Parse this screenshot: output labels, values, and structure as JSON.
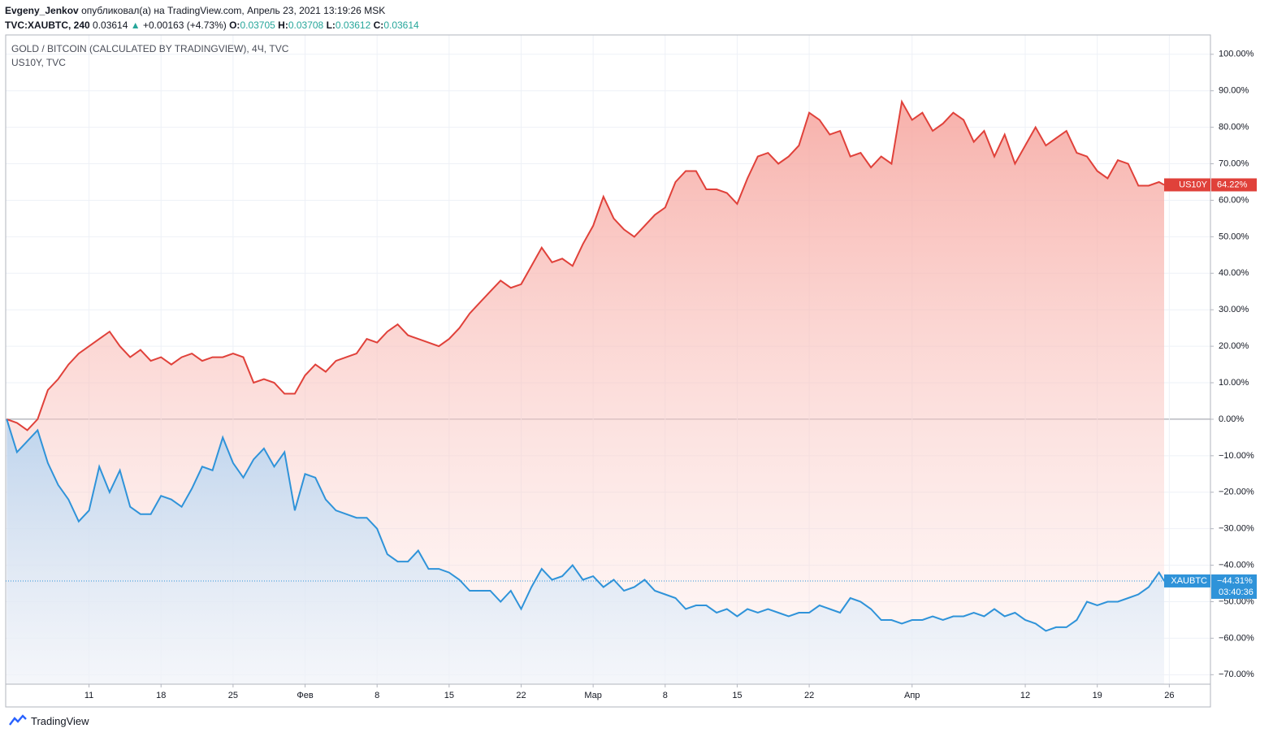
{
  "header": {
    "author": "Evgeny_Jenkov",
    "published": "опубликовал(а) на TradingView.com, Апрель 23, 2021 13:19:26 MSK",
    "symbol": "TVC:XAUBTC, 240",
    "last": "0.03614",
    "arrow": "▲",
    "change": "+0.00163 (+4.73%)",
    "o_label": "O:",
    "o": "0.03705",
    "h_label": "H:",
    "h": "0.03708",
    "l_label": "L:",
    "l": "0.03612",
    "c_label": "C:",
    "c": "0.03614"
  },
  "footer": {
    "brand": "TradingView"
  },
  "chart_data": {
    "type": "line",
    "legend_main": "GOLD / BITCOIN (CALCULATED BY TRADINGVIEW), 4Ч, TVC",
    "legend_compare": "US10Y, TVC",
    "x": [
      3,
      4,
      5,
      6,
      7,
      8,
      9,
      10,
      11,
      12,
      13,
      14,
      15,
      16,
      17,
      18,
      19,
      20,
      21,
      22,
      23,
      24,
      25,
      26,
      27,
      28,
      29,
      30,
      31,
      32,
      33,
      34,
      35,
      36,
      37,
      38,
      39,
      40,
      41,
      42,
      43,
      44,
      45,
      46,
      47,
      48,
      49,
      50,
      51,
      52,
      53,
      54,
      55,
      56,
      57,
      58,
      59,
      60,
      61,
      62,
      63,
      64,
      65,
      66,
      67,
      68,
      69,
      70,
      71,
      72,
      73,
      74,
      75,
      76,
      77,
      78,
      79,
      80,
      81,
      82,
      83,
      84,
      85,
      86,
      87,
      88,
      89,
      90,
      91,
      92,
      93,
      94,
      95,
      96,
      97,
      98,
      99,
      100,
      101,
      102,
      103,
      104,
      105,
      106,
      107,
      108,
      109,
      110,
      111,
      112,
      113,
      114,
      115,
      115.5
    ],
    "series": [
      {
        "name": "US10Y",
        "color": "#e0413a",
        "last_label": "64.22%",
        "values": [
          0,
          -1,
          -3,
          0,
          8,
          11,
          15,
          18,
          20,
          22,
          24,
          20,
          17,
          19,
          16,
          17,
          15,
          17,
          18,
          16,
          17,
          17,
          18,
          17,
          10,
          11,
          10,
          7,
          7,
          12,
          15,
          13,
          16,
          17,
          18,
          22,
          21,
          24,
          26,
          23,
          22,
          21,
          20,
          22,
          25,
          29,
          32,
          35,
          38,
          36,
          37,
          42,
          47,
          43,
          44,
          42,
          48,
          53,
          61,
          55,
          52,
          50,
          53,
          56,
          58,
          65,
          68,
          68,
          63,
          63,
          62,
          59,
          66,
          72,
          73,
          70,
          72,
          75,
          84,
          82,
          78,
          79,
          72,
          73,
          69,
          72,
          70,
          87,
          82,
          84,
          79,
          81,
          84,
          82,
          76,
          79,
          72,
          78,
          70,
          75,
          80,
          75,
          77,
          79,
          73,
          72,
          68,
          66,
          71,
          70,
          64,
          64,
          65,
          64.22
        ]
      },
      {
        "name": "XAUBTC",
        "color": "#2f93d9",
        "last_label": "−44.31%",
        "countdown": "03:40:36",
        "values": [
          0,
          -9,
          -6,
          -3,
          -12,
          -18,
          -22,
          -28,
          -25,
          -13,
          -20,
          -14,
          -24,
          -26,
          -26,
          -21,
          -22,
          -24,
          -19,
          -13,
          -14,
          -5,
          -12,
          -16,
          -11,
          -8,
          -13,
          -9,
          -25,
          -15,
          -16,
          -22,
          -25,
          -26,
          -27,
          -27,
          -30,
          -37,
          -39,
          -39,
          -36,
          -41,
          -41,
          -42,
          -44,
          -47,
          -47,
          -47,
          -50,
          -47,
          -52,
          -46,
          -41,
          -44,
          -43,
          -40,
          -44,
          -43,
          -46,
          -44,
          -47,
          -46,
          -44,
          -47,
          -48,
          -49,
          -52,
          -51,
          -51,
          -53,
          -52,
          -54,
          -52,
          -53,
          -52,
          -53,
          -54,
          -53,
          -53,
          -51,
          -52,
          -53,
          -49,
          -50,
          -52,
          -55,
          -55,
          -56,
          -55,
          -55,
          -54,
          -55,
          -54,
          -54,
          -53,
          -54,
          -52,
          -54,
          -53,
          -55,
          -56,
          -58,
          -57,
          -57,
          -55,
          -50,
          -51,
          -50,
          -50,
          -49,
          -48,
          -46,
          -42,
          -44.31
        ]
      }
    ],
    "xlim": [
      2.9,
      120
    ],
    "xticks": [
      {
        "value": 11,
        "label": "11"
      },
      {
        "value": 18,
        "label": "18"
      },
      {
        "value": 25,
        "label": "25"
      },
      {
        "value": 32,
        "label": "Фев"
      },
      {
        "value": 39,
        "label": "8"
      },
      {
        "value": 46,
        "label": "15"
      },
      {
        "value": 53,
        "label": "22"
      },
      {
        "value": 60,
        "label": "Мар"
      },
      {
        "value": 67,
        "label": "8"
      },
      {
        "value": 74,
        "label": "15"
      },
      {
        "value": 81,
        "label": "22"
      },
      {
        "value": 91,
        "label": "Апр"
      },
      {
        "value": 102,
        "label": "12"
      },
      {
        "value": 109,
        "label": "19"
      },
      {
        "value": 116,
        "label": "26"
      }
    ],
    "ylim": [
      -72.6,
      105.3
    ],
    "yticks": [
      {
        "value": 100,
        "label": "100.00%"
      },
      {
        "value": 90,
        "label": "90.00%"
      },
      {
        "value": 80,
        "label": "80.00%"
      },
      {
        "value": 70,
        "label": "70.00%"
      },
      {
        "value": 60,
        "label": "60.00%"
      },
      {
        "value": 50,
        "label": "50.00%"
      },
      {
        "value": 40,
        "label": "40.00%"
      },
      {
        "value": 30,
        "label": "30.00%"
      },
      {
        "value": 20,
        "label": "20.00%"
      },
      {
        "value": 10,
        "label": "10.00%"
      },
      {
        "value": 0,
        "label": "0.00%"
      },
      {
        "value": -10,
        "label": "−10.00%"
      },
      {
        "value": -20,
        "label": "−20.00%"
      },
      {
        "value": -30,
        "label": "−30.00%"
      },
      {
        "value": -40,
        "label": "−40.00%"
      },
      {
        "value": -50,
        "label": "−50.00%"
      },
      {
        "value": -60,
        "label": "−60.00%"
      },
      {
        "value": -70,
        "label": "−70.00%"
      }
    ],
    "grid": true
  }
}
